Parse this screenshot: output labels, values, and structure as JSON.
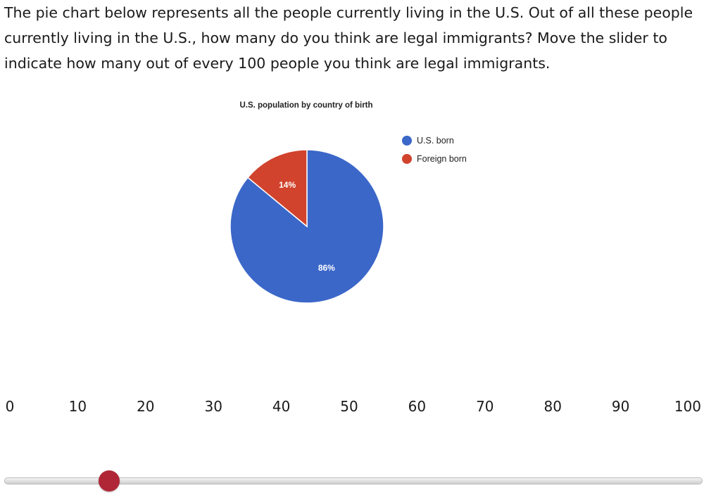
{
  "question": {
    "text": "The pie chart below represents all the people currently living in the U.S. Out of all these people currently living in the U.S., how many do you think are legal immigrants? Move the slider to indicate how many out of every 100 people you think are legal immigrants."
  },
  "chart_data": {
    "type": "pie",
    "title": "U.S. population by country of birth",
    "categories": [
      "U.S. born",
      "Foreign born"
    ],
    "values": [
      86,
      14
    ],
    "data_labels": [
      "86%",
      "14%"
    ],
    "colors": [
      "#3b67c9",
      "#d1432d"
    ],
    "legend_placement": "right"
  },
  "slider": {
    "min": 0,
    "max": 100,
    "value": 15,
    "tick_labels": [
      "0",
      "10",
      "20",
      "30",
      "40",
      "50",
      "60",
      "70",
      "80",
      "90",
      "100"
    ],
    "handle_color": "#b02636"
  }
}
